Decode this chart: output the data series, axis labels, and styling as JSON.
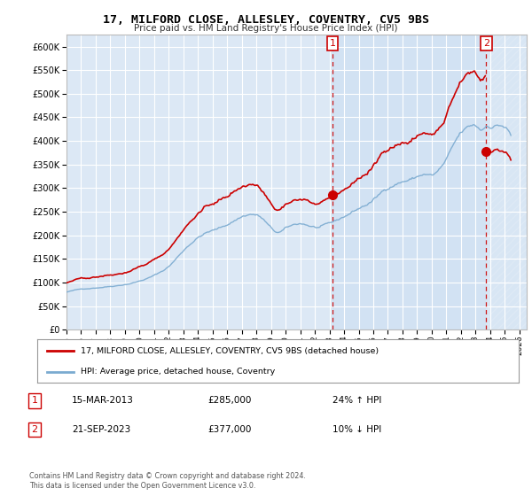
{
  "title": "17, MILFORD CLOSE, ALLESLEY, COVENTRY, CV5 9BS",
  "subtitle": "Price paid vs. HM Land Registry's House Price Index (HPI)",
  "legend_line1": "17, MILFORD CLOSE, ALLESLEY, COVENTRY, CV5 9BS (detached house)",
  "legend_line2": "HPI: Average price, detached house, Coventry",
  "annotation1_date": "15-MAR-2013",
  "annotation1_price": "£285,000",
  "annotation1_hpi": "24% ↑ HPI",
  "annotation2_date": "21-SEP-2023",
  "annotation2_price": "£377,000",
  "annotation2_hpi": "10% ↓ HPI",
  "footer": "Contains HM Land Registry data © Crown copyright and database right 2024.\nThis data is licensed under the Open Government Licence v3.0.",
  "hpi_color": "#7aaad0",
  "price_color": "#cc0000",
  "plot_bg": "#dce8f5",
  "yticks": [
    0,
    50000,
    100000,
    150000,
    200000,
    250000,
    300000,
    350000,
    400000,
    450000,
    500000,
    550000,
    600000
  ],
  "ylim": [
    0,
    625000
  ],
  "xlim_start": 1995.0,
  "xlim_end": 2026.5,
  "marker1_x": 2013.21,
  "marker1_y": 285000,
  "marker2_x": 2023.72,
  "marker2_y": 377000,
  "sale1_price": 285000,
  "sale2_price": 377000
}
